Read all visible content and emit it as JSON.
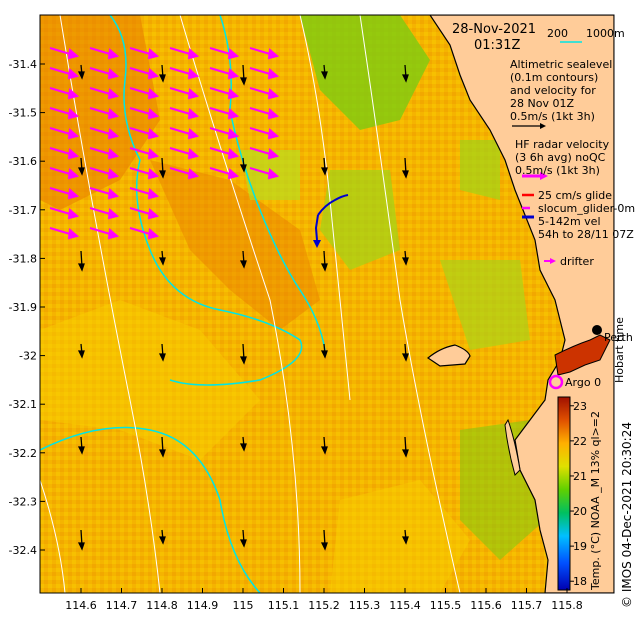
{
  "title": {
    "date": "28-Nov-2021",
    "time": "01:31Z"
  },
  "isobath_legend": {
    "label_200": "200",
    "label_1000": "1000m"
  },
  "altimetry_legend": {
    "lines": [
      "Altimetric sealevel",
      "(0.1m contours)",
      "and velocity for",
      "28 Nov 01Z",
      "0.5m/s (1kt 3h)"
    ]
  },
  "hf_radar_legend": {
    "lines": [
      "HF radar velocity",
      "(3 6h avg) noQC",
      "0.5m/s (1kt 3h)"
    ]
  },
  "glider_legend": {
    "glide": "25 cm/s glide",
    "glider_name": "slocum_glider-0m",
    "vel_line1": "5-142m vel",
    "vel_line2": "54h to 28/11 07Z"
  },
  "drifter_legend": {
    "label": "drifter"
  },
  "argo_legend": {
    "label": "Argo 0"
  },
  "place_labels": {
    "perth": "Perth"
  },
  "timestamp": "Hobart time",
  "credit": "© IMOS 04-Dec-2021 20:30:24",
  "colorbar": {
    "title": "Temp. (°C) NOAA _M 13% ql>=2",
    "ticks": [
      "23",
      "22",
      "21",
      "20",
      "19",
      "18"
    ],
    "range": [
      17.75,
      23.25
    ]
  },
  "x_axis": {
    "ticks": [
      "114.6",
      "114.7",
      "114.8",
      "114.9",
      "115",
      "115.1",
      "115.2",
      "115.3",
      "115.4",
      "115.5",
      "115.6",
      "115.7",
      "115.8"
    ]
  },
  "y_axis": {
    "ticks": [
      "-31.4",
      "-31.5",
      "-31.6",
      "-31.7",
      "-31.8",
      "-31.9",
      "-32",
      "-32.1",
      "-32.2",
      "-32.3",
      "-32.4"
    ]
  },
  "colors": {
    "land": "#ffcc99",
    "isobath": "#00e5e5",
    "hf_radar": "#ff00ff",
    "altimetry_arrow": "#000000",
    "glider_track": "#0000cc",
    "glide_vector": "#ff0000"
  }
}
